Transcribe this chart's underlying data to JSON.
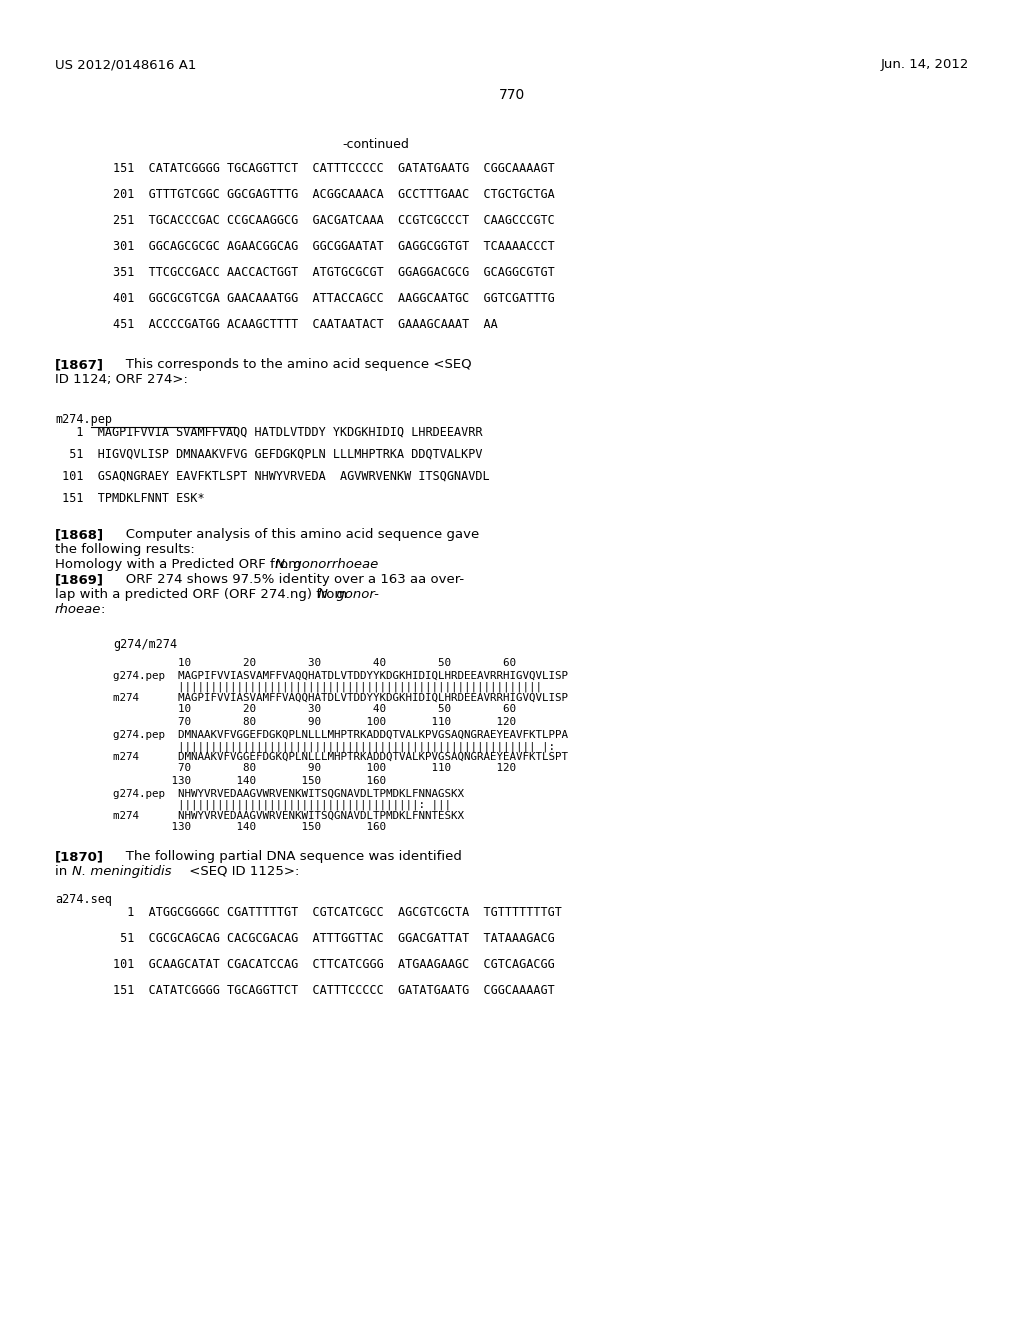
{
  "bg_color": "#ffffff",
  "header_left": "US 2012/0148616 A1",
  "header_right": "Jun. 14, 2012",
  "page_number": "770",
  "continued": "-continued",
  "seq_lines": [
    "151  CATATCGGGG TGCAGGTTCT  CATTTCCCCC  GATATGAATG  CGGCAAAAGT",
    "201  GTTTGTCGGC GGCGAGTTTG  ACGGCAAACA  GCCTTTGAAC  CTGCTGCTGA",
    "251  TGCACCCGAC CCGCAAGGCG  GACGATCAAA  CCGTCGCCCT  CAAGCCCGTC",
    "301  GGCAGCGCGC AGAACGGCAG  GGCGGAATAT  GAGGCGGTGT  TCAAAACCCT",
    "351  TTCGCCGACC AACCACTGGT  ATGTGCGCGT  GGAGGACGCG  GCAGGCGTGT",
    "401  GGCGCGTCGA GAACAAATGG  ATTACCAGCC  AAGGCAATGC  GGTCGATTTG",
    "451  ACCCCGATGG ACAAGCTTTT  CAATAATACT  GAAAGCAAAT  AA"
  ],
  "pep_label": "m274.pep",
  "pep_lines": [
    "   1  MAGPIFVVIA SVAMFFVAQQ HATDLVTDDY YKDGKHIDIQ LHRDEEAVRR",
    "  51  HIGVQVLISP DMNAAKVFVG GEFDGKQPLN LLLMHPTRKA DDQTVALKPV",
    " 101  GSAQNGRAEY EAVFKTLSPT NHWYVRVEDA  AGVWRVENKW ITSQGNAVDL",
    " 151  TPMDKLFNNT ESK*"
  ],
  "align_label": "g274/m274",
  "align_block1_nums_top": "          10        20        30        40        50        60",
  "align_g274_pep_1": "g274.pep  MAGPIFVVIASVAMFFVAQQHATDLVTDDYYKDGKHIDIQLHRDEEAVRRHIGVQVLISP",
  "align_bars_1": "          ||||||||||||||||||||||||||||||||||||||||||||||||||||||||",
  "align_m274_1": "m274      MAGPIFVVIASVAMFFVAQQHATDLVTDDYYKDGKHIDIQLHRDEEAVRRHIGVQVLISP",
  "align_block1_nums_bot": "          10        20        30        40        50        60",
  "align_block2_nums_top": "          70        80        90       100       110       120",
  "align_g274_pep_2": "g274.pep  DMNAAKVFVGGEFDGKQPLNLLLMHPTRKADDQTVALKPVGSAQNGRAEYEAVFKTLPPA",
  "align_bars_2": "          ||||||||||||||||||||||||||||||||||||||||||||||||||||||| |:",
  "align_m274_2": "m274      DMNAAKVFVGGEFDGKQPLNLLLMHPTRKADDQTVALKPVGSAQNGRAEYEAVFKTLSPT",
  "align_block2_nums_bot": "          70        80        90       100       110       120",
  "align_block3_nums_top": "         130       140       150       160",
  "align_g274_pep_3": "g274.pep  NHWYVRVEDAAGVWRVENKWITSQGNAVDLTPMDKLFNNAGSKX",
  "align_bars_3": "          |||||||||||||||||||||||||||||||||||||: |||",
  "align_m274_3": "m274      NHWYVRVEDAAGVWRVENKWITSQGNAVDLTPMDKLFNNTESKX",
  "align_block3_nums_bot": "         130       140       150       160",
  "dna_label": "a274.seq",
  "dna_lines": [
    "  1  ATGGCGGGGC CGATTTTTGT  CGTCATCGCC  AGCGTCGCTA  TGTTTTTTTGT",
    " 51  CGCGCAGCAG CACGCGACAG  ATTTGGTTAC  GGACGATTAT  TATAAAGACG",
    "101  GCAAGCATAT CGACATCCAG  CTTCATCGGG  ATGAAGAAGC  CGTCAGACGG",
    "151  CATATCGGGG TGCAGGTTCT  CATTTCCCCC  GATATGAATG  CGGCAAAAGT"
  ]
}
